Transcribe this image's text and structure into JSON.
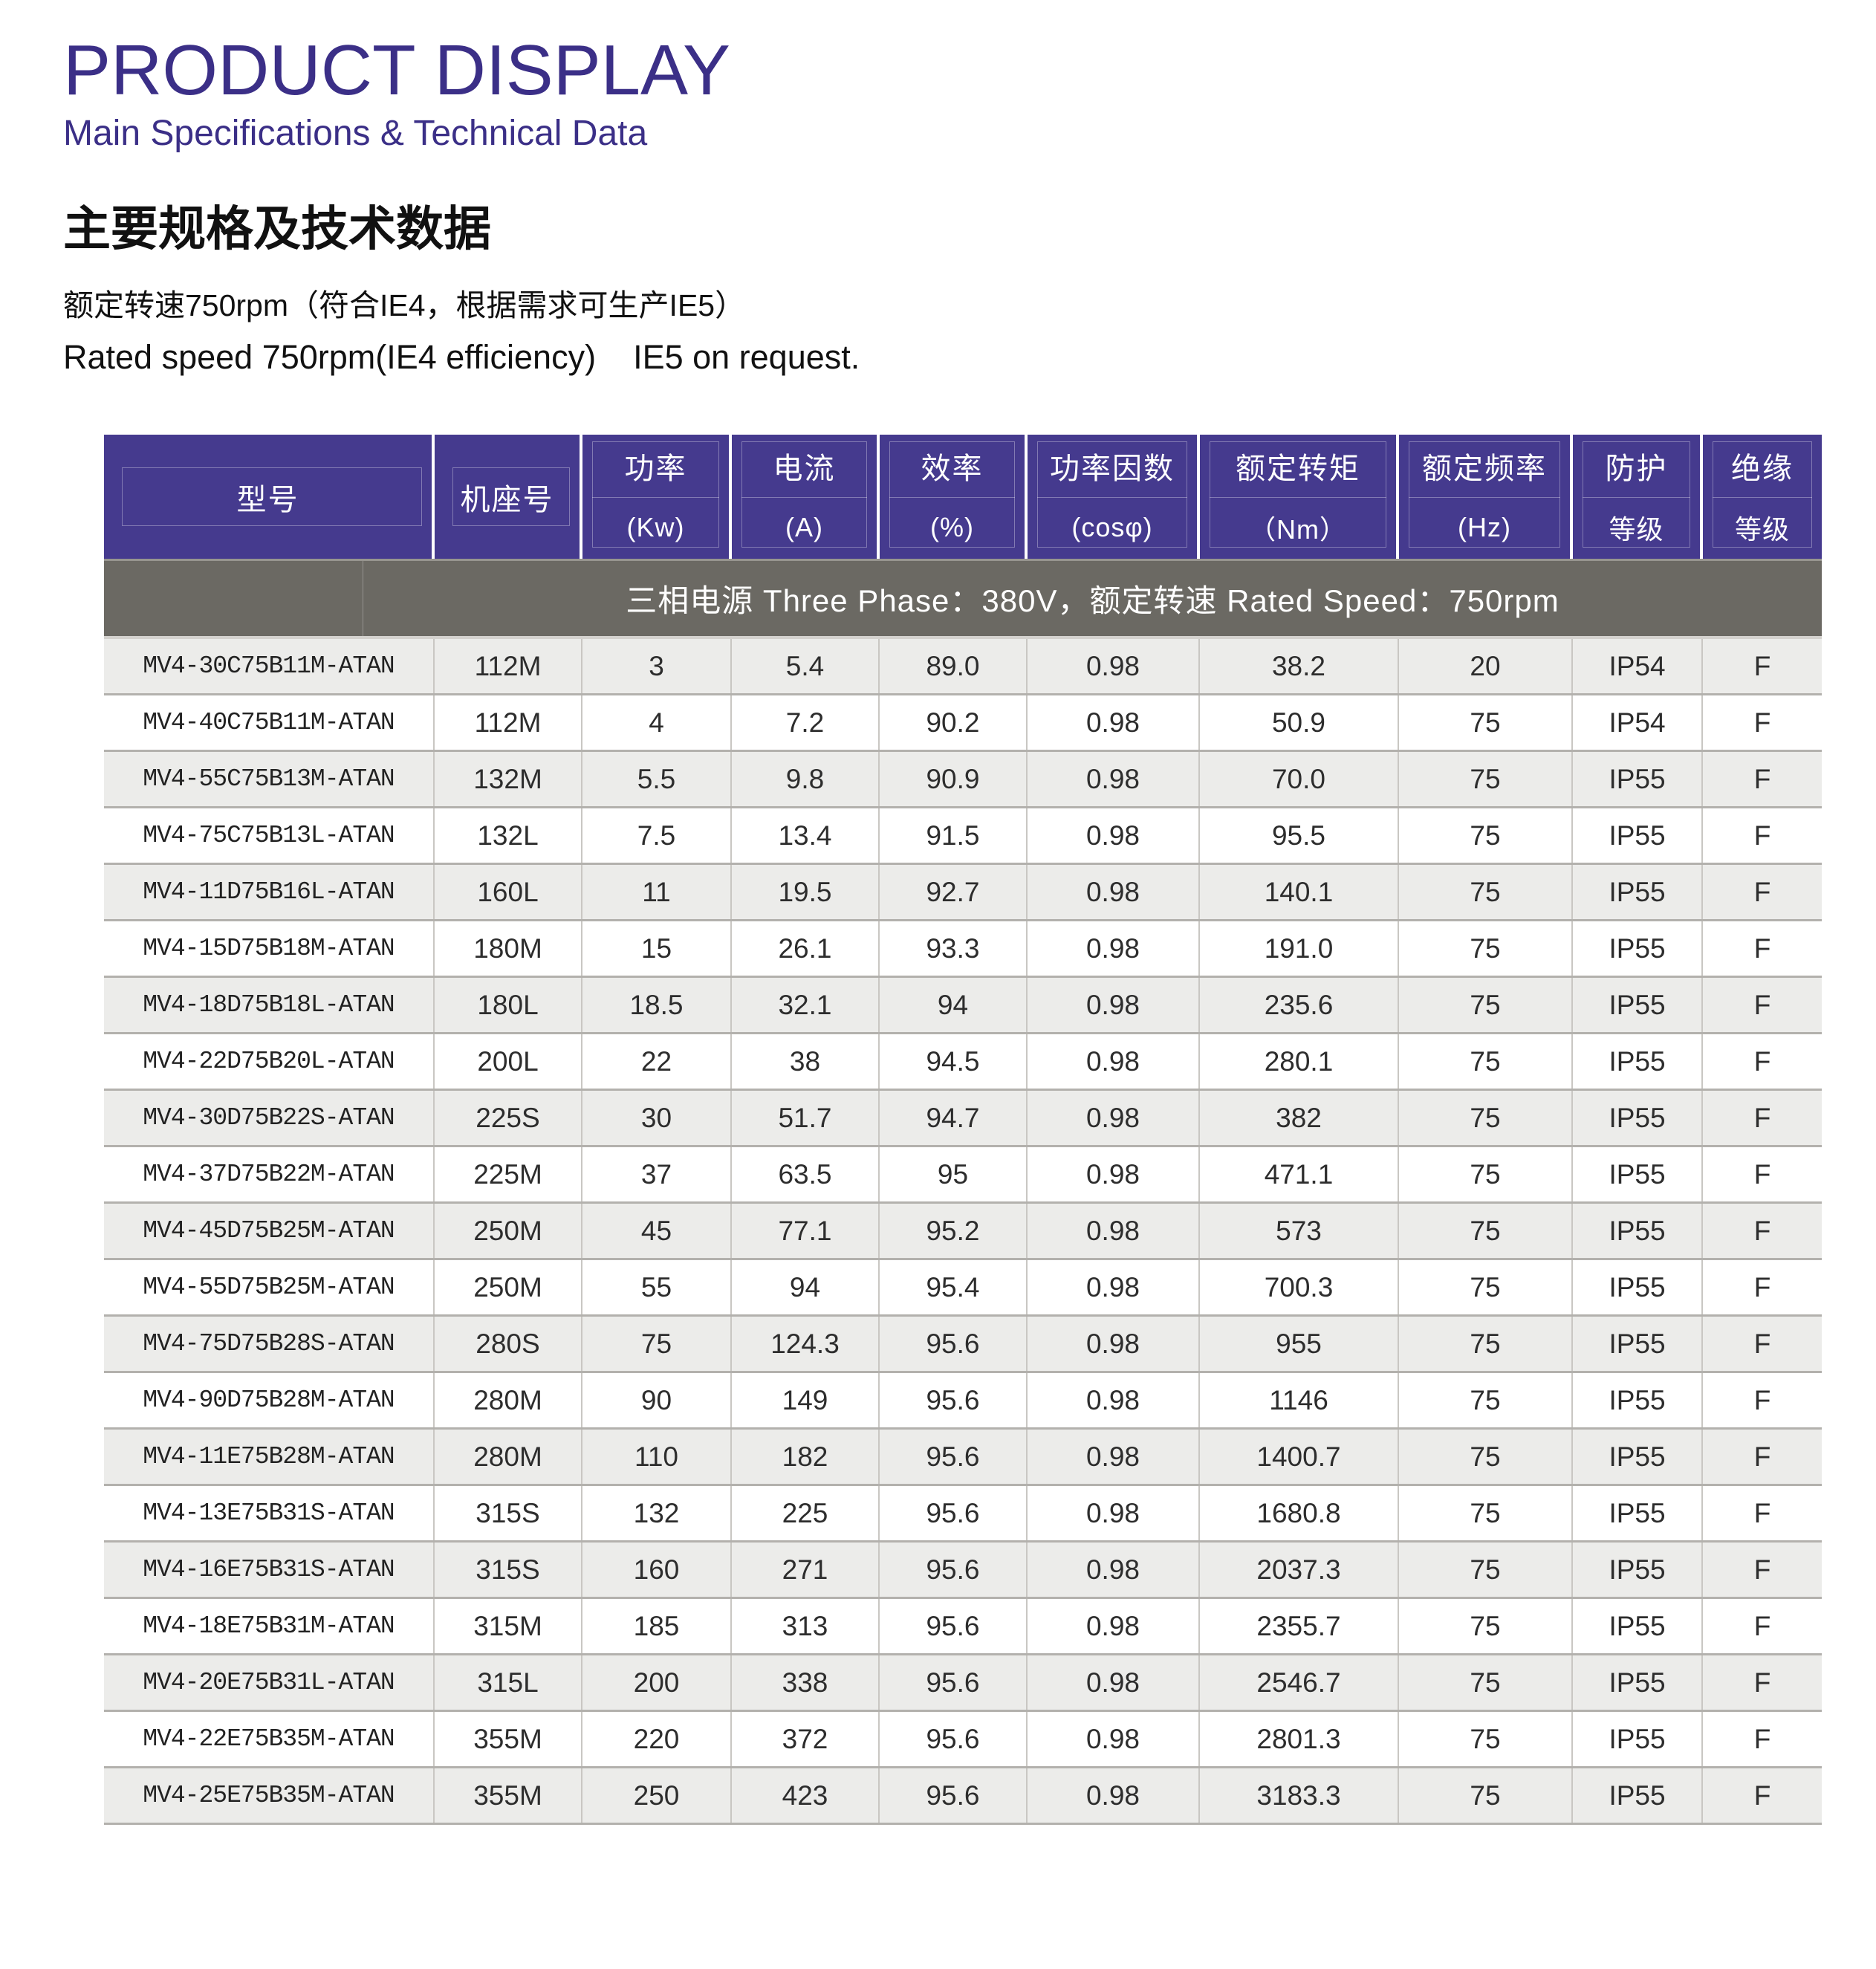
{
  "header": {
    "title": "PRODUCT DISPLAY",
    "subtitle": "Main Specifications & Technical Data",
    "heading_cn": "主要规格及技术数据",
    "rated_line_cn": "额定转速750rpm（符合IE4，根据需求可生产IE5）",
    "rated_line_en": "Rated speed 750rpm(IE4 efficiency)    IE5 on request."
  },
  "colors": {
    "accent": "#3b2f87",
    "table_header_bg": "#453a8e",
    "banner_bg": "#6b6963",
    "row_stripe": "#ececea",
    "row_border": "#b3b1ad",
    "cell_border": "#c9c7c3"
  },
  "table": {
    "banner": "三相电源 Three Phase：380V，额定转速 Rated Speed：750rpm",
    "columns": [
      {
        "key": "model",
        "label": "型号",
        "unit": ""
      },
      {
        "key": "frame",
        "label": "机座号",
        "unit": ""
      },
      {
        "key": "power",
        "label": "功率",
        "unit": "(Kw)"
      },
      {
        "key": "current",
        "label": "电流",
        "unit": "(A)"
      },
      {
        "key": "efficiency",
        "label": "效率",
        "unit": "(%)"
      },
      {
        "key": "power-factor",
        "label": "功率因数",
        "unit": "(cosφ)"
      },
      {
        "key": "rated-torque",
        "label": "额定转矩",
        "unit": "（Nm）"
      },
      {
        "key": "rated-frequency",
        "label": "额定频率",
        "unit": "(Hz)"
      },
      {
        "key": "protection-class",
        "label": "防护",
        "unit": "等级"
      },
      {
        "key": "insulation-class",
        "label": "绝缘",
        "unit": "等级"
      }
    ],
    "rows": [
      [
        "MV4-30C75B11M-ATAN",
        "112M",
        "3",
        "5.4",
        "89.0",
        "0.98",
        "38.2",
        "20",
        "IP54",
        "F"
      ],
      [
        "MV4-40C75B11M-ATAN",
        "112M",
        "4",
        "7.2",
        "90.2",
        "0.98",
        "50.9",
        "75",
        "IP54",
        "F"
      ],
      [
        "MV4-55C75B13M-ATAN",
        "132M",
        "5.5",
        "9.8",
        "90.9",
        "0.98",
        "70.0",
        "75",
        "IP55",
        "F"
      ],
      [
        "MV4-75C75B13L-ATAN",
        "132L",
        "7.5",
        "13.4",
        "91.5",
        "0.98",
        "95.5",
        "75",
        "IP55",
        "F"
      ],
      [
        "MV4-11D75B16L-ATAN",
        "160L",
        "11",
        "19.5",
        "92.7",
        "0.98",
        "140.1",
        "75",
        "IP55",
        "F"
      ],
      [
        "MV4-15D75B18M-ATAN",
        "180M",
        "15",
        "26.1",
        "93.3",
        "0.98",
        "191.0",
        "75",
        "IP55",
        "F"
      ],
      [
        "MV4-18D75B18L-ATAN",
        "180L",
        "18.5",
        "32.1",
        "94",
        "0.98",
        "235.6",
        "75",
        "IP55",
        "F"
      ],
      [
        "MV4-22D75B20L-ATAN",
        "200L",
        "22",
        "38",
        "94.5",
        "0.98",
        "280.1",
        "75",
        "IP55",
        "F"
      ],
      [
        "MV4-30D75B22S-ATAN",
        "225S",
        "30",
        "51.7",
        "94.7",
        "0.98",
        "382",
        "75",
        "IP55",
        "F"
      ],
      [
        "MV4-37D75B22M-ATAN",
        "225M",
        "37",
        "63.5",
        "95",
        "0.98",
        "471.1",
        "75",
        "IP55",
        "F"
      ],
      [
        "MV4-45D75B25M-ATAN",
        "250M",
        "45",
        "77.1",
        "95.2",
        "0.98",
        "573",
        "75",
        "IP55",
        "F"
      ],
      [
        "MV4-55D75B25M-ATAN",
        "250M",
        "55",
        "94",
        "95.4",
        "0.98",
        "700.3",
        "75",
        "IP55",
        "F"
      ],
      [
        "MV4-75D75B28S-ATAN",
        "280S",
        "75",
        "124.3",
        "95.6",
        "0.98",
        "955",
        "75",
        "IP55",
        "F"
      ],
      [
        "MV4-90D75B28M-ATAN",
        "280M",
        "90",
        "149",
        "95.6",
        "0.98",
        "1146",
        "75",
        "IP55",
        "F"
      ],
      [
        "MV4-11E75B28M-ATAN",
        "280M",
        "110",
        "182",
        "95.6",
        "0.98",
        "1400.7",
        "75",
        "IP55",
        "F"
      ],
      [
        "MV4-13E75B31S-ATAN",
        "315S",
        "132",
        "225",
        "95.6",
        "0.98",
        "1680.8",
        "75",
        "IP55",
        "F"
      ],
      [
        "MV4-16E75B31S-ATAN",
        "315S",
        "160",
        "271",
        "95.6",
        "0.98",
        "2037.3",
        "75",
        "IP55",
        "F"
      ],
      [
        "MV4-18E75B31M-ATAN",
        "315M",
        "185",
        "313",
        "95.6",
        "0.98",
        "2355.7",
        "75",
        "IP55",
        "F"
      ],
      [
        "MV4-20E75B31L-ATAN",
        "315L",
        "200",
        "338",
        "95.6",
        "0.98",
        "2546.7",
        "75",
        "IP55",
        "F"
      ],
      [
        "MV4-22E75B35M-ATAN",
        "355M",
        "220",
        "372",
        "95.6",
        "0.98",
        "2801.3",
        "75",
        "IP55",
        "F"
      ],
      [
        "MV4-25E75B35M-ATAN",
        "355M",
        "250",
        "423",
        "95.6",
        "0.98",
        "3183.3",
        "75",
        "IP55",
        "F"
      ]
    ]
  }
}
